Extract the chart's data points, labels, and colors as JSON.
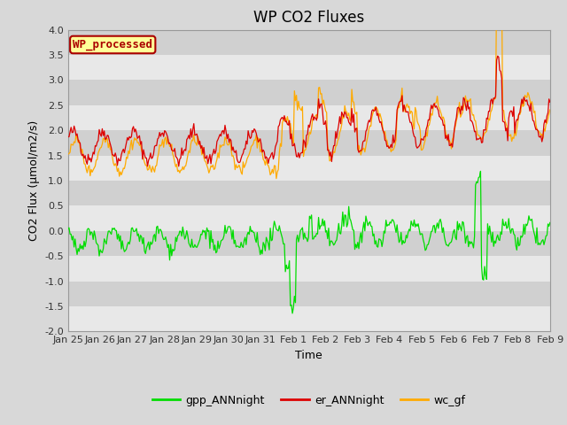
{
  "title": "WP CO2 Fluxes",
  "xlabel": "Time",
  "ylabel": "CO2 Flux (μmol/m2/s)",
  "ylim": [
    -2.0,
    4.0
  ],
  "yticks": [
    -2.0,
    -1.5,
    -1.0,
    -0.5,
    0.0,
    0.5,
    1.0,
    1.5,
    2.0,
    2.5,
    3.0,
    3.5,
    4.0
  ],
  "xtick_labels": [
    "Jan 25",
    "Jan 26",
    "Jan 27",
    "Jan 28",
    "Jan 29",
    "Jan 30",
    "Jan 31",
    "Feb 1",
    "Feb 2",
    "Feb 3",
    "Feb 4",
    "Feb 5",
    "Feb 6",
    "Feb 7",
    "Feb 8",
    "Feb 9"
  ],
  "color_gpp": "#00dd00",
  "color_er": "#dd0000",
  "color_wc": "#ffaa00",
  "fig_color": "#d8d8d8",
  "plot_bg_dark": "#d0d0d0",
  "plot_bg_light": "#e8e8e8",
  "legend_label": "WP_processed",
  "legend_bg": "#ffff99",
  "legend_border": "#aa0000",
  "series_labels": [
    "gpp_ANNnight",
    "er_ANNnight",
    "wc_gf"
  ],
  "n_points": 480,
  "title_fontsize": 12,
  "axis_fontsize": 9,
  "tick_fontsize": 8,
  "linewidth": 0.9
}
